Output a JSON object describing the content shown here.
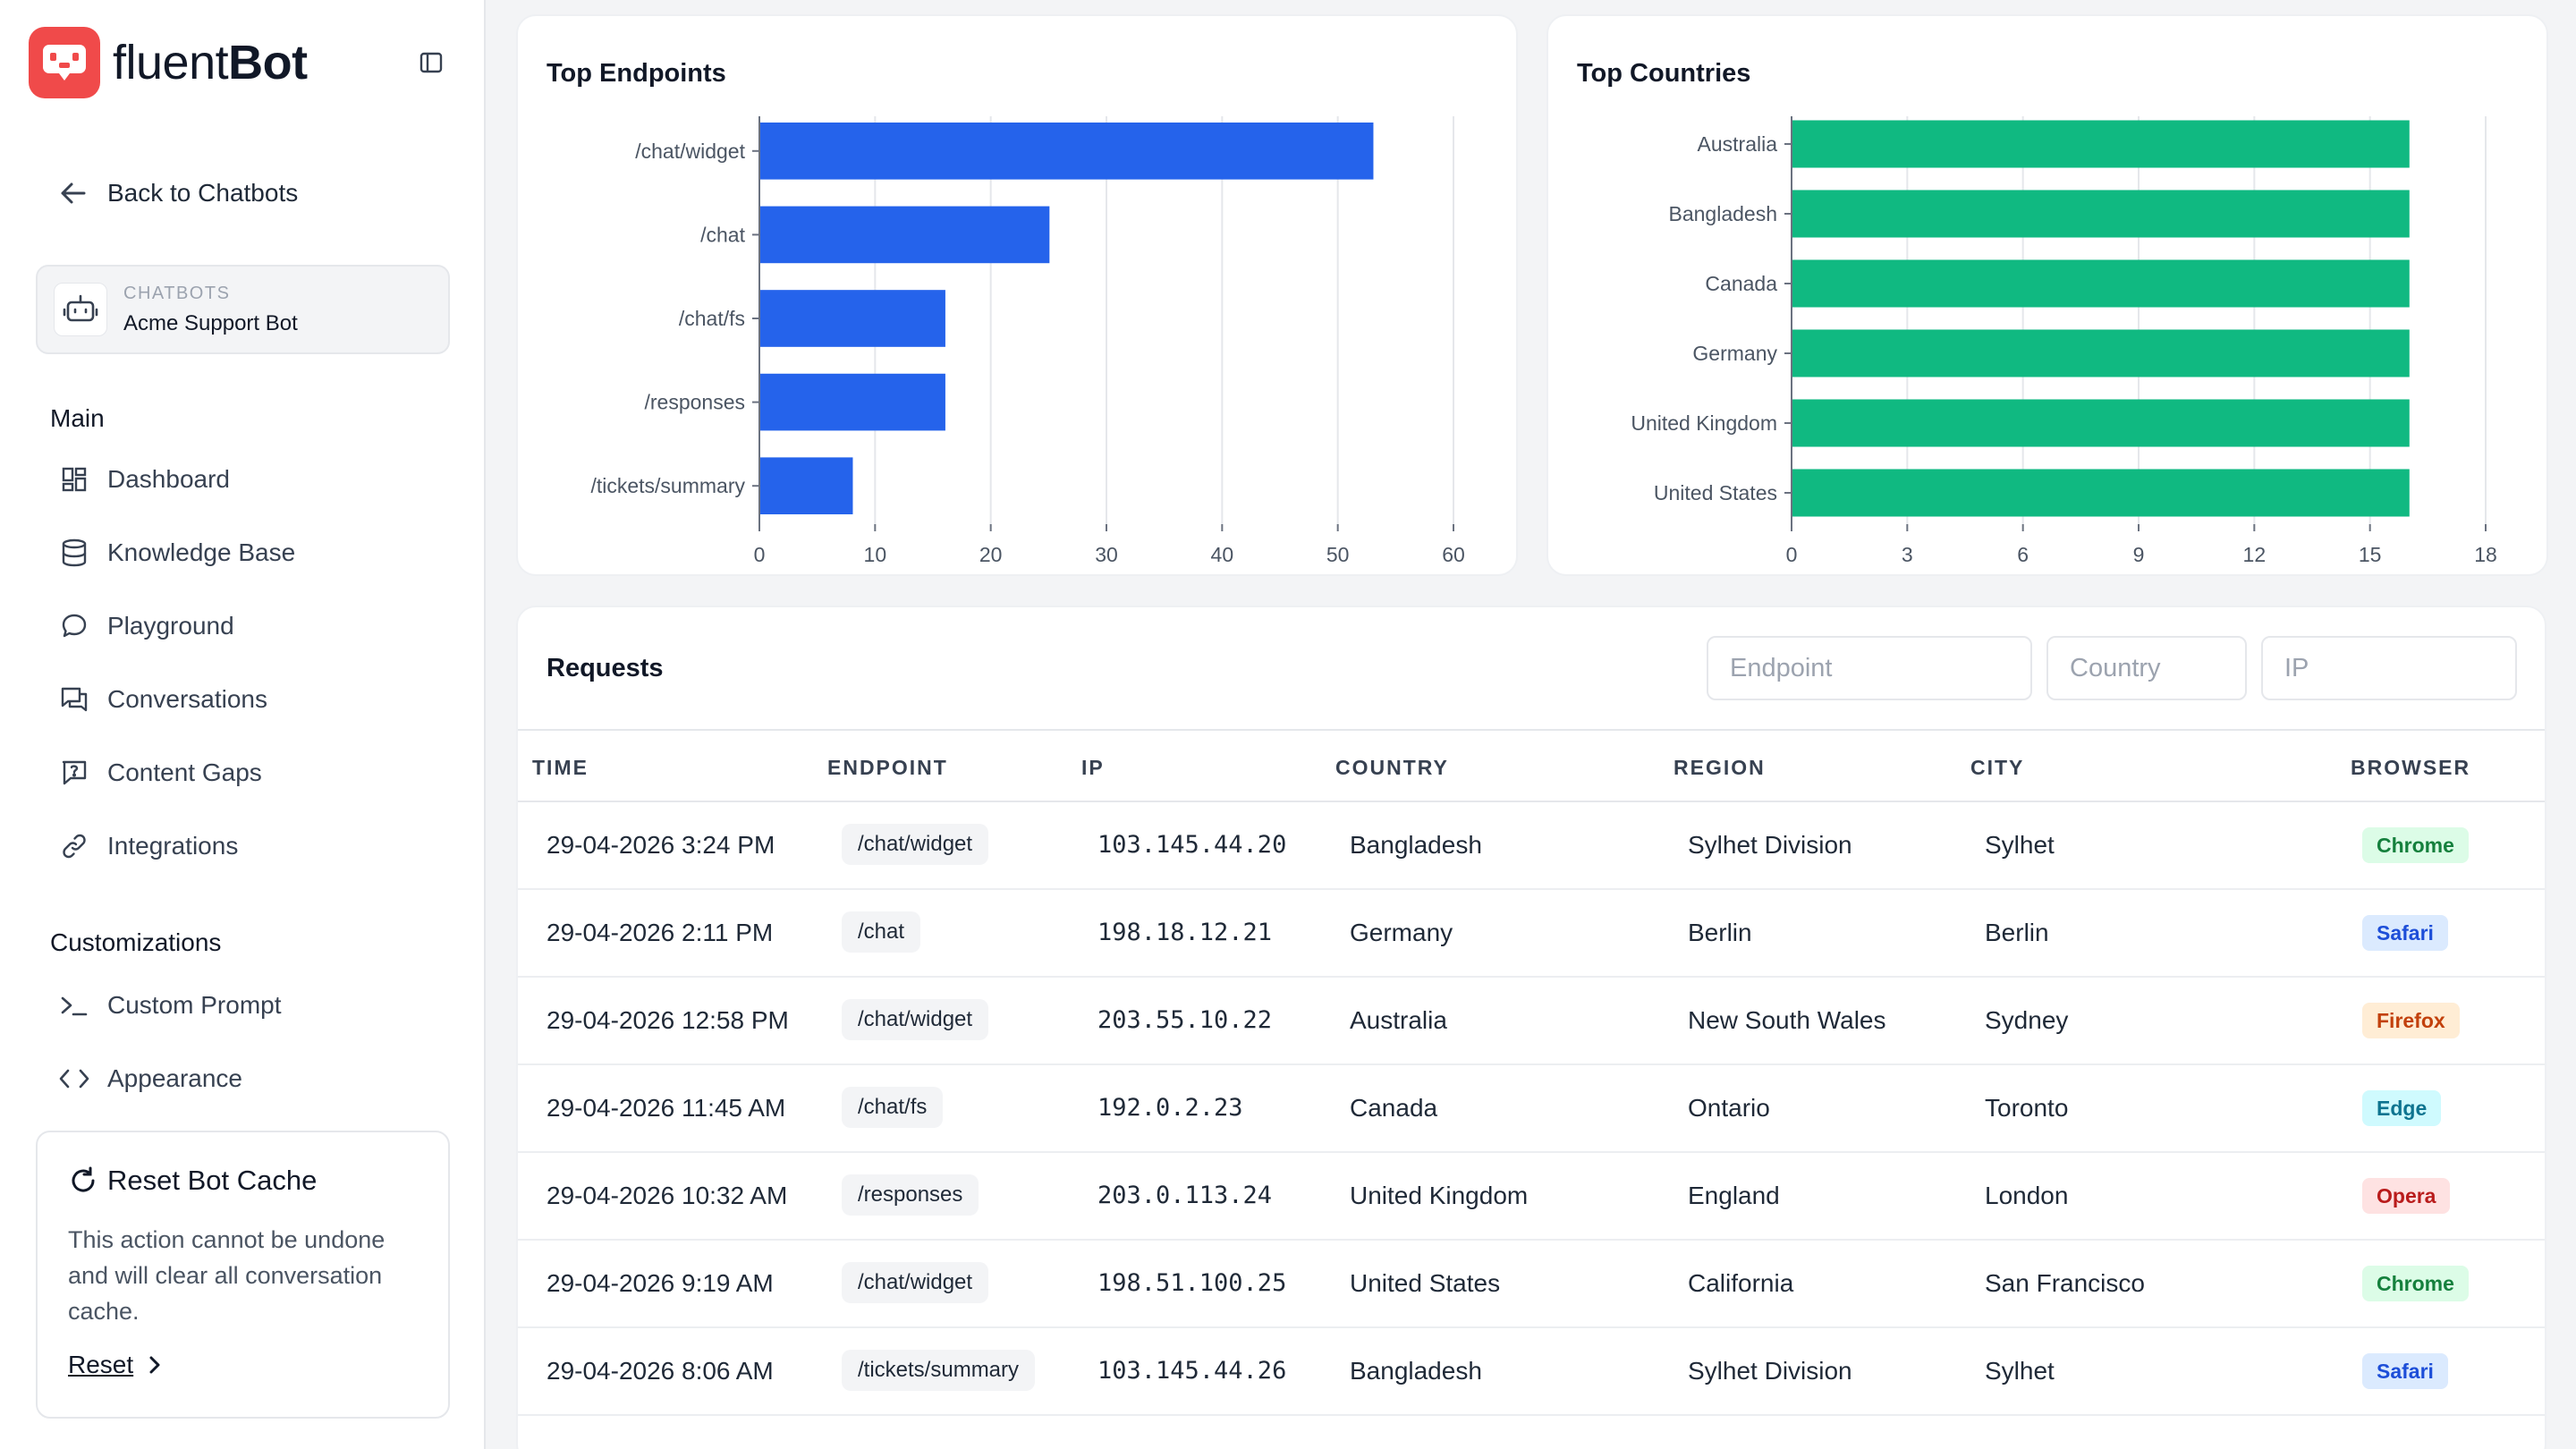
{
  "brand": {
    "name_light": "fluent",
    "name_bold": "Bot",
    "color": "#f04a4a"
  },
  "sidebar": {
    "back_label": "Back to Chatbots",
    "bot_eyebrow": "CHATBOTS",
    "bot_name": "Acme Support Bot",
    "main_label": "Main",
    "main_items": [
      {
        "label": "Dashboard",
        "icon": "dashboard-icon"
      },
      {
        "label": "Knowledge Base",
        "icon": "database-icon"
      },
      {
        "label": "Playground",
        "icon": "chat-bubble-icon"
      },
      {
        "label": "Conversations",
        "icon": "conversations-icon"
      },
      {
        "label": "Content Gaps",
        "icon": "question-message-icon"
      },
      {
        "label": "Integrations",
        "icon": "link-icon"
      }
    ],
    "custom_label": "Customizations",
    "custom_items": [
      {
        "label": "Custom Prompt",
        "icon": "terminal-icon"
      },
      {
        "label": "Appearance",
        "icon": "code-icon"
      }
    ],
    "reset_card": {
      "title": "Reset Bot Cache",
      "description": "This action cannot be undone and will clear all conversation cache.",
      "link_label": "Reset"
    }
  },
  "chart_data": [
    {
      "type": "bar",
      "orientation": "horizontal",
      "title": "Top Endpoints",
      "categories": [
        "/chat/widget",
        "/chat",
        "/chat/fs",
        "/responses",
        "/tickets/summary"
      ],
      "values": [
        53,
        25,
        16,
        16,
        8
      ],
      "xlim": [
        0,
        60
      ],
      "xticks": [
        0,
        10,
        20,
        30,
        40,
        50,
        60
      ],
      "grid": true,
      "color": "#2563eb"
    },
    {
      "type": "bar",
      "orientation": "horizontal",
      "title": "Top Countries",
      "categories": [
        "Australia",
        "Bangladesh",
        "Canada",
        "Germany",
        "United Kingdom",
        "United States"
      ],
      "values": [
        16,
        16,
        16,
        16,
        16,
        16
      ],
      "xlim": [
        0,
        18
      ],
      "xticks": [
        0,
        3,
        6,
        9,
        12,
        15,
        18
      ],
      "grid": true,
      "color": "#10b981"
    }
  ],
  "requests": {
    "title": "Requests",
    "filters": {
      "endpoint_placeholder": "Endpoint",
      "country_placeholder": "Country",
      "ip_placeholder": "IP"
    },
    "columns": [
      "TIME",
      "ENDPOINT",
      "IP",
      "COUNTRY",
      "REGION",
      "CITY",
      "BROWSER"
    ],
    "rows": [
      {
        "time": "29-04-2026 3:24 PM",
        "endpoint": "/chat/widget",
        "ip": "103.145.44.20",
        "country": "Bangladesh",
        "region": "Sylhet Division",
        "city": "Sylhet",
        "browser": "Chrome"
      },
      {
        "time": "29-04-2026 2:11 PM",
        "endpoint": "/chat",
        "ip": "198.18.12.21",
        "country": "Germany",
        "region": "Berlin",
        "city": "Berlin",
        "browser": "Safari"
      },
      {
        "time": "29-04-2026 12:58 PM",
        "endpoint": "/chat/widget",
        "ip": "203.55.10.22",
        "country": "Australia",
        "region": "New South Wales",
        "city": "Sydney",
        "browser": "Firefox"
      },
      {
        "time": "29-04-2026 11:45 AM",
        "endpoint": "/chat/fs",
        "ip": "192.0.2.23",
        "country": "Canada",
        "region": "Ontario",
        "city": "Toronto",
        "browser": "Edge"
      },
      {
        "time": "29-04-2026 10:32 AM",
        "endpoint": "/responses",
        "ip": "203.0.113.24",
        "country": "United Kingdom",
        "region": "England",
        "city": "London",
        "browser": "Opera"
      },
      {
        "time": "29-04-2026 9:19 AM",
        "endpoint": "/chat/widget",
        "ip": "198.51.100.25",
        "country": "United States",
        "region": "California",
        "city": "San Francisco",
        "browser": "Chrome"
      },
      {
        "time": "29-04-2026 8:06 AM",
        "endpoint": "/tickets/summary",
        "ip": "103.145.44.26",
        "country": "Bangladesh",
        "region": "Sylhet Division",
        "city": "Sylhet",
        "browser": "Safari"
      }
    ],
    "browser_colors": {
      "Chrome": {
        "bg": "#dcfce7",
        "fg": "#15803d"
      },
      "Safari": {
        "bg": "#dbeafe",
        "fg": "#1d4ed8"
      },
      "Firefox": {
        "bg": "#ffedd5",
        "fg": "#c2410c"
      },
      "Edge": {
        "bg": "#cffafe",
        "fg": "#0e7490"
      },
      "Opera": {
        "bg": "#fee2e2",
        "fg": "#b91c1c"
      }
    }
  }
}
